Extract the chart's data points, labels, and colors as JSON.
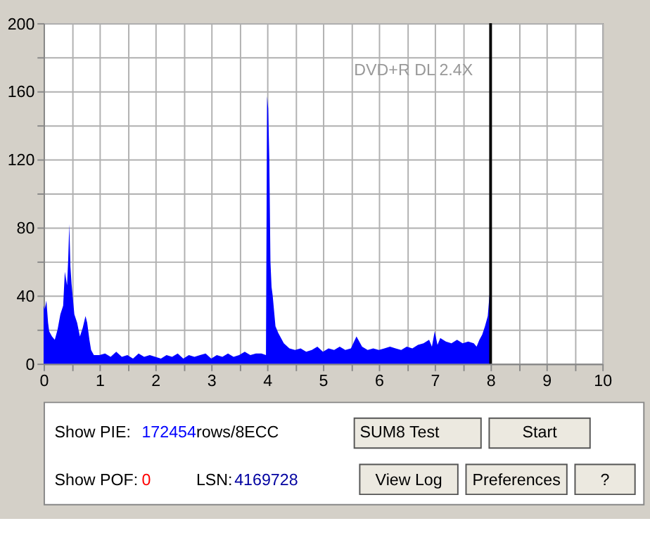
{
  "chart_data": {
    "type": "area",
    "subtitle": "DVD+R DL   2.4X",
    "x": [
      0,
      0.02,
      0.05,
      0.08,
      0.1,
      0.15,
      0.2,
      0.25,
      0.3,
      0.35,
      0.38,
      0.42,
      0.44,
      0.46,
      0.48,
      0.5,
      0.55,
      0.6,
      0.65,
      0.7,
      0.75,
      0.78,
      0.82,
      0.85,
      0.9,
      1.0,
      1.1,
      1.2,
      1.3,
      1.4,
      1.5,
      1.6,
      1.7,
      1.8,
      1.9,
      2.0,
      2.1,
      2.2,
      2.3,
      2.4,
      2.5,
      2.6,
      2.7,
      2.8,
      2.9,
      3.0,
      3.1,
      3.2,
      3.3,
      3.4,
      3.5,
      3.6,
      3.7,
      3.8,
      3.9,
      3.98,
      4.0,
      4.02,
      4.04,
      4.06,
      4.08,
      4.1,
      4.15,
      4.2,
      4.3,
      4.4,
      4.5,
      4.6,
      4.7,
      4.8,
      4.9,
      5.0,
      5.1,
      5.2,
      5.3,
      5.4,
      5.5,
      5.6,
      5.7,
      5.8,
      5.9,
      6.0,
      6.1,
      6.2,
      6.3,
      6.4,
      6.5,
      6.6,
      6.7,
      6.8,
      6.9,
      6.95,
      7.0,
      7.05,
      7.1,
      7.2,
      7.3,
      7.4,
      7.5,
      7.6,
      7.7,
      7.75,
      7.8,
      7.85,
      7.9,
      7.95,
      7.98,
      8.0
    ],
    "values": [
      34,
      32,
      37,
      24,
      19,
      16,
      14,
      20,
      29,
      34,
      54,
      46,
      61,
      82,
      57,
      47,
      29,
      24,
      16,
      21,
      28,
      24,
      14,
      8,
      5,
      5,
      6,
      4,
      7,
      4,
      5,
      3,
      6,
      4,
      5,
      4,
      3,
      5,
      4,
      6,
      3,
      5,
      4,
      5,
      6,
      3,
      5,
      4,
      6,
      4,
      5,
      7,
      5,
      6,
      6,
      5,
      157,
      150,
      120,
      60,
      45,
      40,
      22,
      18,
      12,
      9,
      8,
      9,
      7,
      8,
      10,
      7,
      9,
      8,
      10,
      8,
      9,
      16,
      10,
      8,
      9,
      8,
      9,
      10,
      9,
      8,
      10,
      9,
      11,
      12,
      14,
      10,
      19,
      11,
      15,
      13,
      12,
      14,
      12,
      13,
      12,
      10,
      14,
      17,
      22,
      28,
      40,
      44
    ],
    "color": "#0000ff",
    "xlim": [
      0,
      10
    ],
    "xticks": [
      0,
      {
        "value": 0.5,
        "label": null
      },
      1,
      {
        "value": 1.5,
        "label": null
      },
      2,
      {
        "value": 2.5,
        "label": null
      },
      3,
      {
        "value": 3.5,
        "label": null
      },
      4,
      {
        "value": 4.5,
        "label": null
      },
      5,
      {
        "value": 5.5,
        "label": null
      },
      6,
      {
        "value": 6.5,
        "label": null
      },
      7,
      {
        "value": 7.5,
        "label": null
      },
      8,
      {
        "value": 8.5,
        "label": null
      },
      9,
      {
        "value": 9.5,
        "label": null
      },
      10
    ],
    "ylim": [
      0,
      200
    ],
    "yticks": [
      0,
      {
        "value": 20,
        "label": null
      },
      40,
      {
        "value": 60,
        "label": null
      },
      80,
      {
        "value": 100,
        "label": null
      },
      120,
      {
        "value": 140,
        "label": null
      },
      160,
      {
        "value": 180,
        "label": null
      },
      200
    ],
    "grid": true,
    "ref_lines": [
      {
        "axis": "x",
        "value": 8,
        "color": "#000000"
      }
    ],
    "annotations": [
      "Show PIE:",
      "172454",
      "rows/8ECC",
      "Show POF:",
      "0",
      "LSN:",
      "4169728",
      "SUM8 Test",
      "Start",
      "View Log",
      "Preferences",
      "?"
    ]
  }
}
